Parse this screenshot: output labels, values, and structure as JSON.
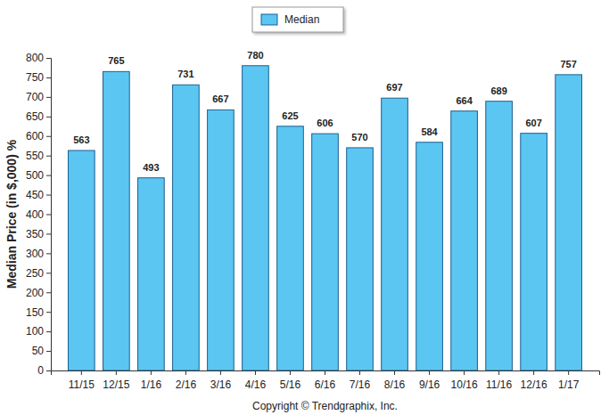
{
  "chart_data": {
    "type": "bar",
    "y_label": "Median Price (in $,000) %",
    "categories": [
      "11/15",
      "12/15",
      "1/16",
      "2/16",
      "3/16",
      "4/16",
      "5/16",
      "6/16",
      "7/16",
      "8/16",
      "9/16",
      "10/16",
      "11/16",
      "12/16",
      "1/17"
    ],
    "series": [
      {
        "name": "Median",
        "color": "#5cc6f2",
        "values": [
          563,
          765,
          493,
          731,
          667,
          780,
          625,
          606,
          570,
          697,
          584,
          664,
          689,
          607,
          757
        ]
      }
    ],
    "ylim": [
      0,
      800
    ],
    "yticks": [
      0,
      50,
      100,
      150,
      200,
      250,
      300,
      350,
      400,
      450,
      500,
      550,
      600,
      650,
      700,
      750,
      800
    ],
    "grid": false,
    "legend": "top",
    "data_labels": true,
    "annotations": [
      "Copyright © Trendgraphix, Inc."
    ]
  }
}
